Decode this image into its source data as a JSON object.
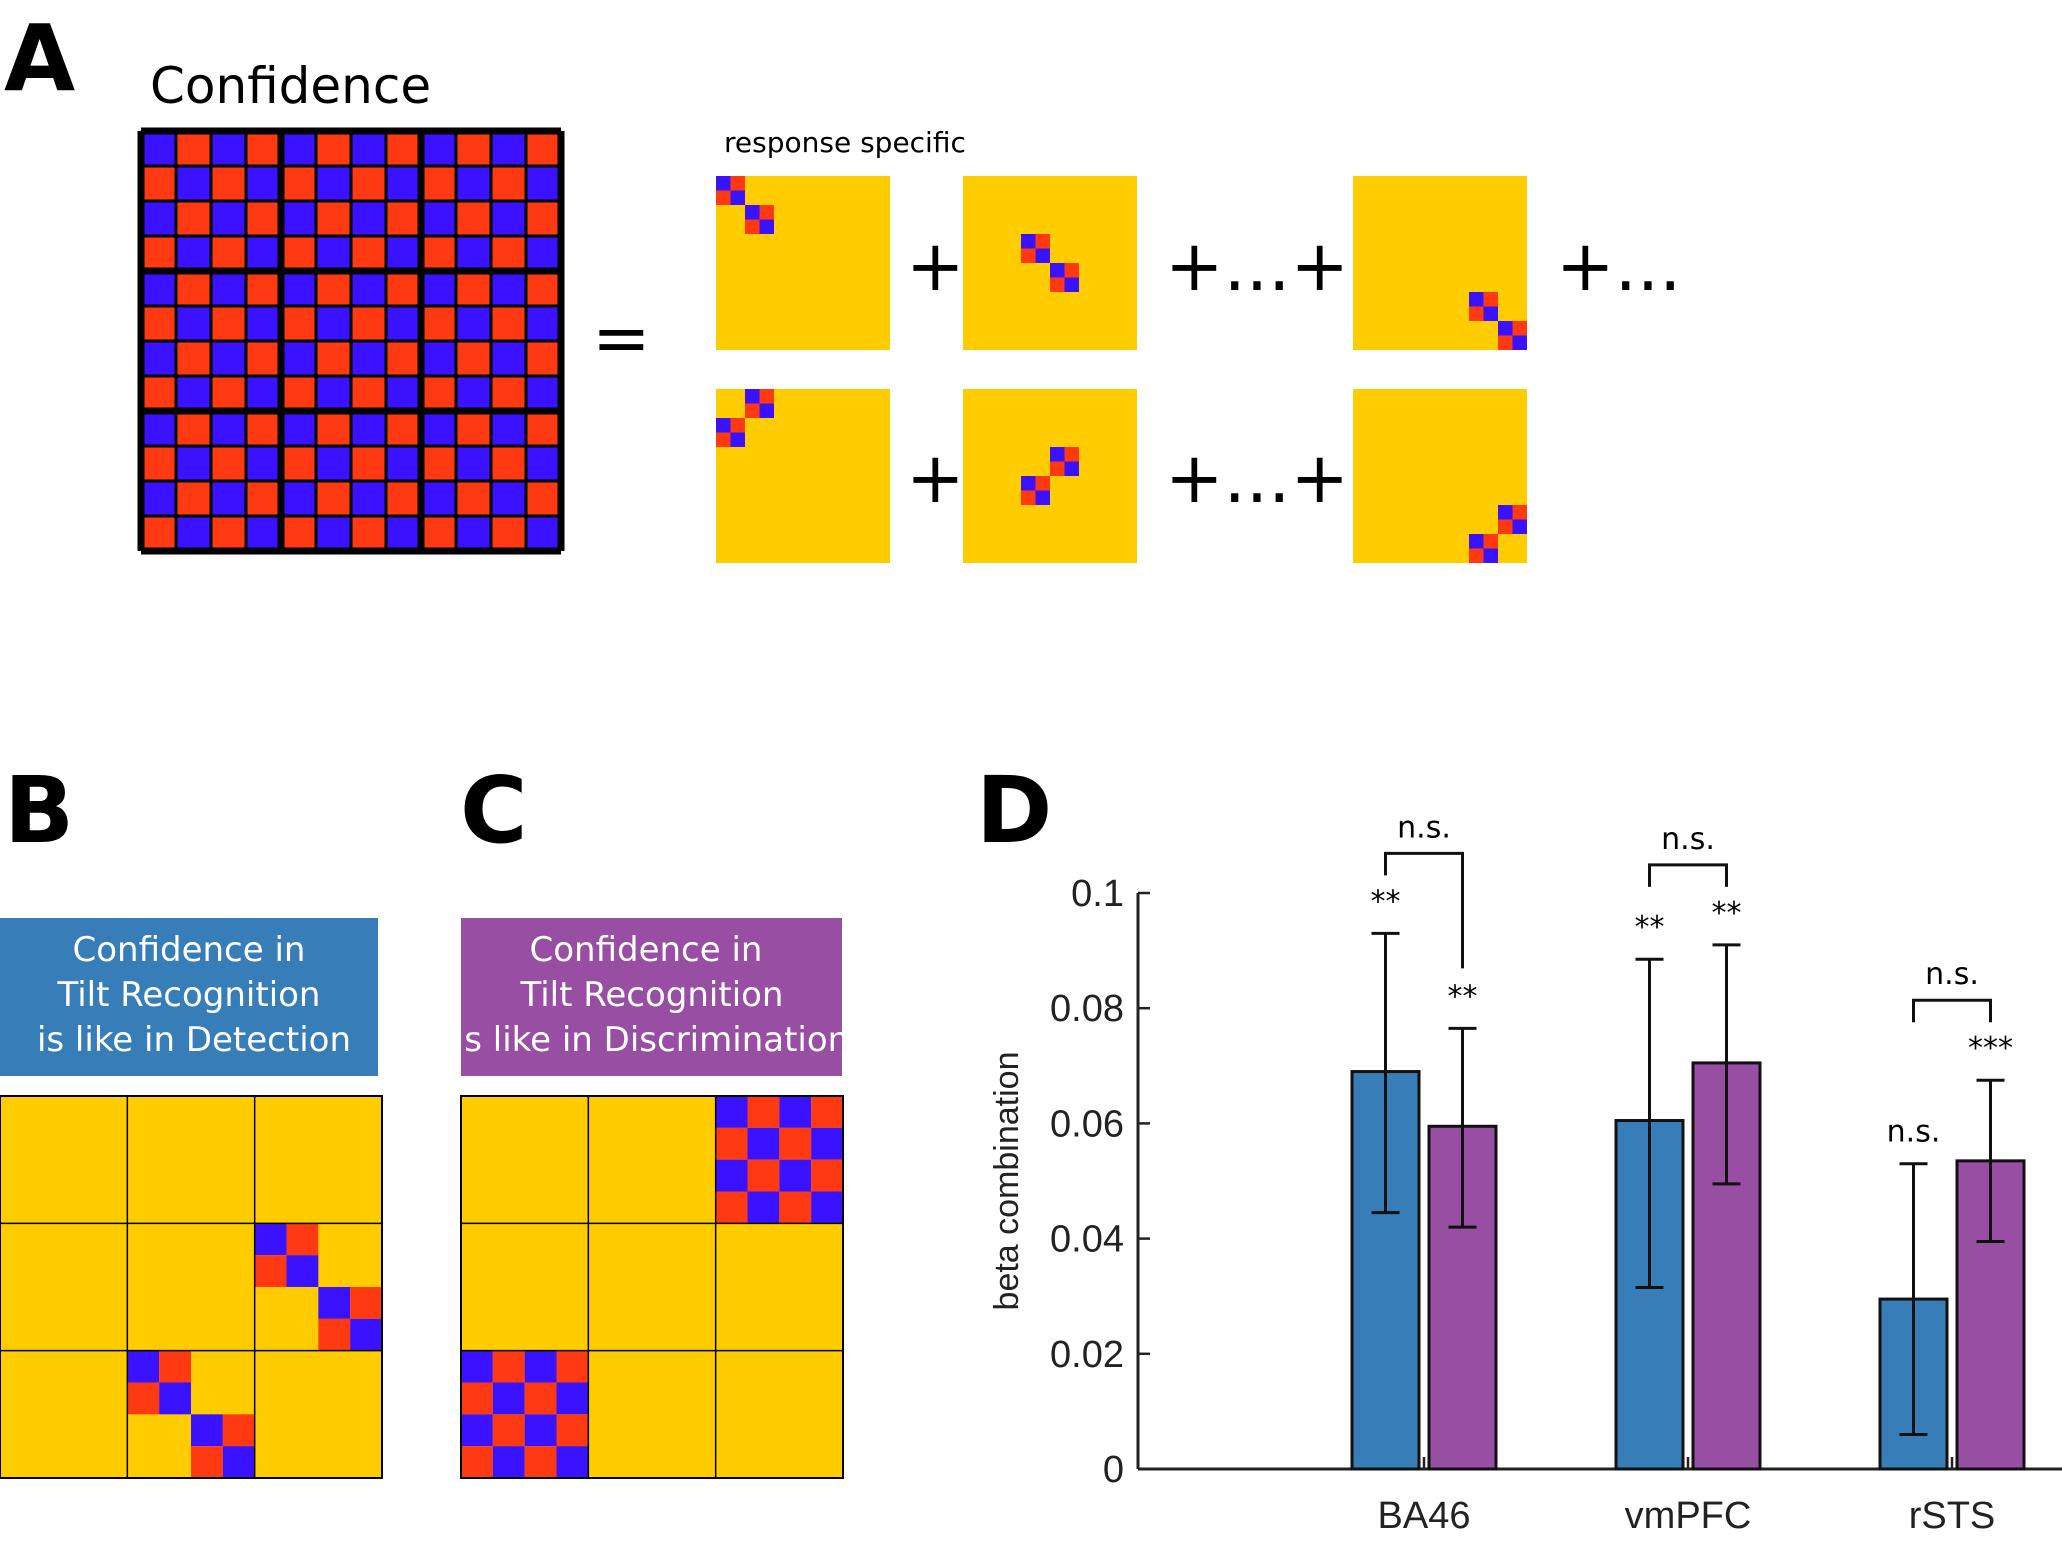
{
  "panel_a": {
    "letter": "A",
    "title": "Confidence",
    "equals": "=",
    "response_specific": "response specific",
    "plus": "+",
    "plus_dots_plus": "+...+",
    "plus_dots": "+..."
  },
  "panel_b": {
    "letter": "B",
    "box_lines": [
      "Confidence in",
      "Tilt Recognition",
      "is like in Detection"
    ]
  },
  "panel_c": {
    "letter": "C",
    "box_lines": [
      "Confidence in",
      "Tilt Recognition",
      "is like in Discrimination"
    ]
  },
  "panel_d": {
    "letter": "D"
  },
  "colors": {
    "red": "#ff3a12",
    "blue": "#3a12ff",
    "yellow": "#ffcc00",
    "bar_blue": "#377eb8",
    "bar_purple": "#984ea3"
  },
  "chart_data": {
    "type": "bar",
    "categories": [
      "BA46",
      "vmPFC",
      "rSTS"
    ],
    "ylabel": "beta combination",
    "ylim": [
      0,
      0.1
    ],
    "yticks": [
      "0",
      "0.02",
      "0.04",
      "0.06",
      "0.08",
      "0.1"
    ],
    "series": [
      {
        "color": "#377eb8",
        "values": [
          0.069,
          0.0605,
          0.0295
        ],
        "err_low": [
          0.0445,
          0.0315,
          0.006
        ],
        "err_high": [
          0.093,
          0.0885,
          0.053
        ],
        "sig": [
          "**",
          "**",
          "n.s."
        ]
      },
      {
        "color": "#984ea3",
        "values": [
          0.0595,
          0.0705,
          0.0535
        ],
        "err_low": [
          0.042,
          0.0495,
          0.0395
        ],
        "err_high": [
          0.0765,
          0.091,
          0.0675
        ],
        "sig": [
          "**",
          "**",
          "***"
        ]
      }
    ],
    "comparisons": [
      "n.s.",
      "n.s.",
      "n.s."
    ]
  }
}
